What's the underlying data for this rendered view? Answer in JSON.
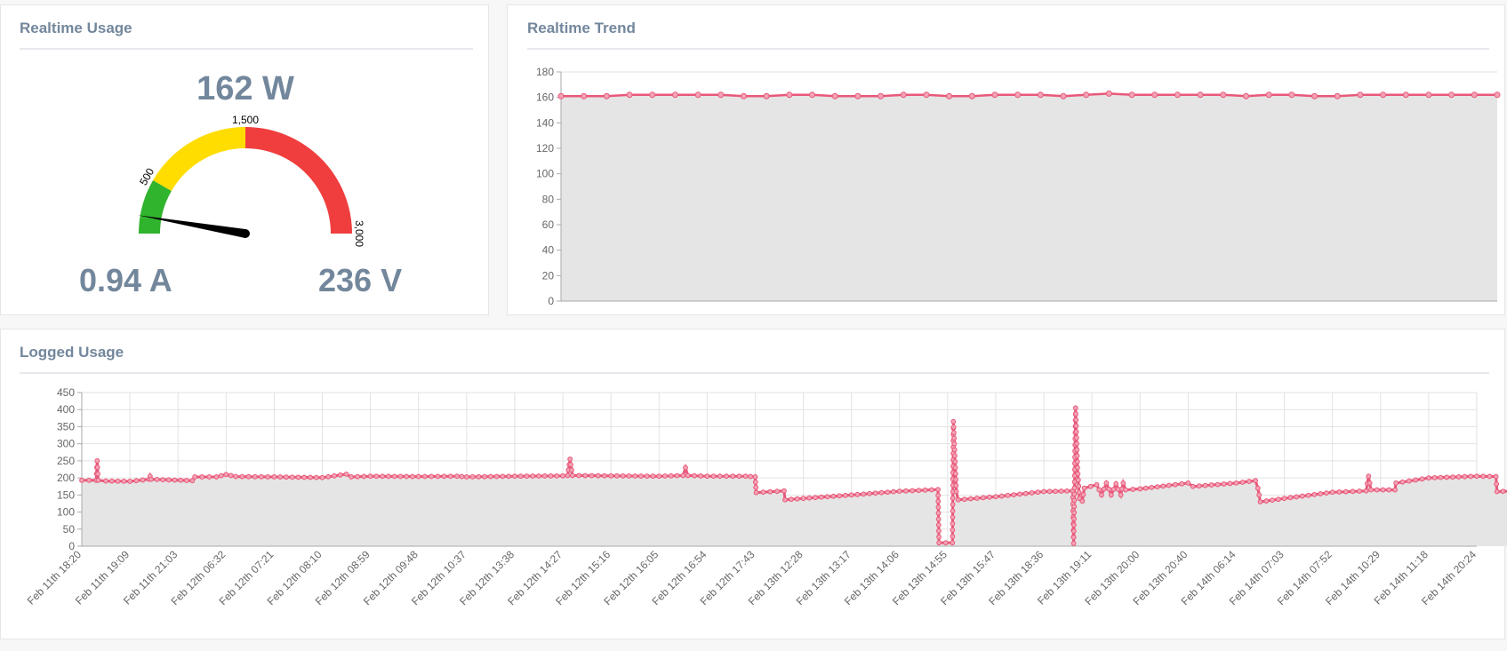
{
  "panels": {
    "usage": {
      "title": "Realtime Usage"
    },
    "trend": {
      "title": "Realtime Trend"
    },
    "logged": {
      "title": "Logged Usage"
    }
  },
  "readings": {
    "power": "162 W",
    "current": "0.94 A",
    "voltage": "236 V"
  },
  "gauge": {
    "min": 0,
    "max": 3000,
    "value": 162,
    "bands": [
      {
        "from": 0,
        "to": 500,
        "color": "#30b32d"
      },
      {
        "from": 500,
        "to": 1500,
        "color": "#ffdd00"
      },
      {
        "from": 1500,
        "to": 3000,
        "color": "#f03e3e"
      }
    ],
    "labels": [
      "500",
      "1,500",
      "3,000"
    ]
  },
  "colors": {
    "line": "#e8587a",
    "fill": "#e5e5e5",
    "grid": "#e2e2e2",
    "axis": "#aaaaaa"
  },
  "chart_data": [
    {
      "type": "line",
      "ylim": [
        0,
        180
      ],
      "yticks": [
        0,
        20,
        40,
        60,
        80,
        100,
        120,
        140,
        160,
        180
      ],
      "grid": true,
      "series": [
        {
          "values": [
            161,
            161,
            161,
            162,
            162,
            162,
            162,
            162,
            161,
            161,
            162,
            162,
            161,
            161,
            161,
            162,
            162,
            161,
            161,
            162,
            162,
            162,
            161,
            162,
            163,
            162,
            162,
            162,
            162,
            162,
            161,
            162,
            162,
            161,
            161,
            162,
            162,
            162,
            162,
            162,
            162,
            162
          ]
        }
      ]
    },
    {
      "type": "area",
      "ylim": [
        0,
        450
      ],
      "yticks": [
        0,
        50,
        100,
        150,
        200,
        250,
        300,
        350,
        400,
        450
      ],
      "grid": true,
      "categories": [
        "Feb 11th 18:20",
        "Feb 11th 19:09",
        "Feb 11th 21:03",
        "Feb 12th 06:32",
        "Feb 12th 07:21",
        "Feb 12th 08:10",
        "Feb 12th 08:59",
        "Feb 12th 09:48",
        "Feb 12th 10:37",
        "Feb 12th 13:38",
        "Feb 12th 14:27",
        "Feb 12th 15:16",
        "Feb 12th 16:05",
        "Feb 12th 16:54",
        "Feb 12th 17:43",
        "Feb 13th 12:28",
        "Feb 13th 13:17",
        "Feb 13th 14:06",
        "Feb 13th 14:55",
        "Feb 13th 15:47",
        "Feb 13th 18:36",
        "Feb 13th 19:11",
        "Feb 13th 20:00",
        "Feb 13th 20:40",
        "Feb 14th 06:14",
        "Feb 14th 07:03",
        "Feb 14th 07:52",
        "Feb 14th 10:29",
        "Feb 14th 11:18",
        "Feb 14th 20:24"
      ],
      "series": [
        {
          "points": [
            [
              0.0,
              193
            ],
            [
              0.3,
              193
            ],
            [
              0.32,
              250
            ],
            [
              0.34,
              193
            ],
            [
              0.5,
              191
            ],
            [
              1.0,
              190
            ],
            [
              1.4,
              196
            ],
            [
              1.42,
              205
            ],
            [
              1.44,
              196
            ],
            [
              2.3,
              192
            ],
            [
              2.35,
              203
            ],
            [
              2.8,
              203
            ],
            [
              3.0,
              210
            ],
            [
              3.2,
              204
            ],
            [
              4.0,
              203
            ],
            [
              5.0,
              201
            ],
            [
              5.5,
              211
            ],
            [
              5.6,
              203
            ],
            [
              6.0,
              205
            ],
            [
              7.0,
              204
            ],
            [
              7.8,
              205
            ],
            [
              8.0,
              203
            ],
            [
              9.0,
              205
            ],
            [
              10.0,
              206
            ],
            [
              10.1,
              207
            ],
            [
              10.15,
              255
            ],
            [
              10.2,
              207
            ],
            [
              11.0,
              206
            ],
            [
              12.0,
              205
            ],
            [
              12.5,
              207
            ],
            [
              12.55,
              230
            ],
            [
              12.6,
              207
            ],
            [
              13.0,
              205
            ],
            [
              13.8,
              205
            ],
            [
              14.0,
              203
            ],
            [
              14.02,
              157
            ],
            [
              14.6,
              162
            ],
            [
              14.62,
              136
            ],
            [
              15.0,
              140
            ],
            [
              16.0,
              150
            ],
            [
              17.0,
              161
            ],
            [
              17.8,
              166
            ],
            [
              17.82,
              10
            ],
            [
              18.1,
              10
            ],
            [
              18.12,
              365
            ],
            [
              18.14,
              300
            ],
            [
              18.18,
              160
            ],
            [
              18.22,
              136
            ],
            [
              19.0,
              145
            ],
            [
              20.0,
              160
            ],
            [
              20.6,
              162
            ],
            [
              20.62,
              8
            ],
            [
              20.66,
              405
            ],
            [
              20.7,
              230
            ],
            [
              20.74,
              140
            ],
            [
              20.8,
              132
            ],
            [
              20.84,
              170
            ],
            [
              21.1,
              180
            ],
            [
              21.2,
              150
            ],
            [
              21.3,
              185
            ],
            [
              21.4,
              150
            ],
            [
              21.5,
              183
            ],
            [
              21.6,
              150
            ],
            [
              21.65,
              185
            ],
            [
              21.7,
              165
            ],
            [
              22.0,
              168
            ],
            [
              22.6,
              178
            ],
            [
              23.0,
              185
            ],
            [
              23.1,
              175
            ],
            [
              24.0,
              185
            ],
            [
              24.4,
              192
            ],
            [
              24.45,
              170
            ],
            [
              24.5,
              130
            ],
            [
              25.0,
              140
            ],
            [
              26.0,
              158
            ],
            [
              26.7,
              162
            ],
            [
              26.75,
              205
            ],
            [
              26.8,
              165
            ],
            [
              27.3,
              165
            ],
            [
              27.32,
              185
            ],
            [
              28.0,
              200
            ],
            [
              29.0,
              205
            ],
            [
              29.4,
              204
            ],
            [
              29.42,
              160
            ],
            [
              29.8,
              162
            ]
          ]
        }
      ]
    }
  ]
}
